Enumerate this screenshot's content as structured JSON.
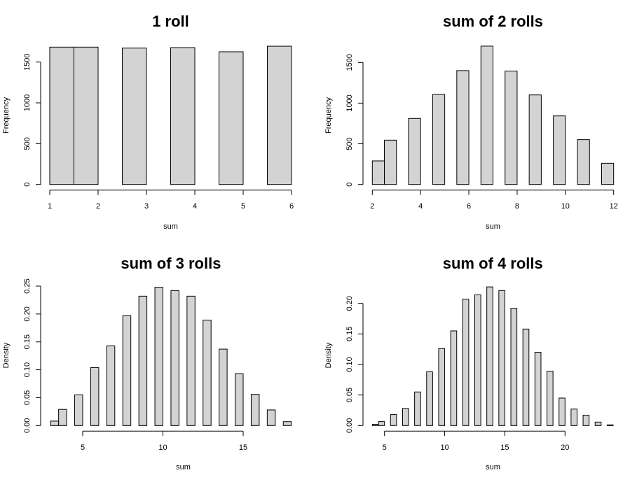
{
  "chart_data": [
    {
      "type": "bar",
      "title": "1 roll",
      "xlabel": "sum",
      "ylabel": "Frequency",
      "bin_start": 1,
      "bin_width": 0.5,
      "values": [
        1683,
        1683,
        0,
        1671,
        0,
        1677,
        0,
        1626,
        0,
        1694
      ],
      "xlim": [
        1,
        6
      ],
      "ylim": [
        0,
        1500
      ],
      "xticks": [
        1,
        2,
        3,
        4,
        5,
        6
      ],
      "yticks": [
        "0",
        "500",
        "1000",
        "1500"
      ],
      "fill": "#d3d3d3"
    },
    {
      "type": "bar",
      "title": "sum of 2 rolls",
      "xlabel": "sum",
      "ylabel": "Frequency",
      "bin_start": 2,
      "bin_width": 0.5,
      "values": [
        290,
        545,
        0,
        812,
        0,
        1107,
        0,
        1400,
        0,
        1701,
        0,
        1394,
        0,
        1101,
        0,
        843,
        0,
        551,
        0,
        261
      ],
      "xlim": [
        2,
        12
      ],
      "ylim": [
        0,
        1500
      ],
      "xticks": [
        2,
        4,
        6,
        8,
        10,
        12
      ],
      "yticks": [
        "0",
        "500",
        "1000",
        "1500"
      ],
      "fill": "#d3d3d3"
    },
    {
      "type": "bar",
      "title": "sum of 3 rolls",
      "xlabel": "sum",
      "ylabel": "Density",
      "bin_start": 3,
      "bin_width": 0.5,
      "values": [
        0.008,
        0.029,
        0,
        0.055,
        0,
        0.104,
        0,
        0.143,
        0,
        0.197,
        0,
        0.232,
        0,
        0.248,
        0,
        0.242,
        0,
        0.232,
        0,
        0.189,
        0,
        0.137,
        0,
        0.093,
        0,
        0.056,
        0,
        0.028,
        0,
        0.007
      ],
      "xlim": [
        5,
        15
      ],
      "ylim": [
        0,
        0.25
      ],
      "xticks": [
        5,
        10,
        15
      ],
      "yticks": [
        "0.00",
        "0.05",
        "0.10",
        "0.15",
        "0.20",
        "0.25"
      ],
      "fill": "#d3d3d3"
    },
    {
      "type": "bar",
      "title": "sum of 4 rolls",
      "xlabel": "sum",
      "ylabel": "Density",
      "bin_start": 4,
      "bin_width": 0.5,
      "values": [
        0.002,
        0.0065,
        0,
        0.018,
        0,
        0.028,
        0,
        0.055,
        0,
        0.088,
        0,
        0.126,
        0,
        0.155,
        0,
        0.207,
        0,
        0.214,
        0,
        0.227,
        0,
        0.221,
        0,
        0.192,
        0,
        0.158,
        0,
        0.12,
        0,
        0.089,
        0,
        0.045,
        0,
        0.027,
        0,
        0.017,
        0,
        0.0057,
        0,
        0.0011
      ],
      "xlim": [
        5,
        20
      ],
      "ylim": [
        0,
        0.2
      ],
      "xticks": [
        5,
        10,
        15,
        20
      ],
      "yticks": [
        "0.00",
        "0.05",
        "0.10",
        "0.15",
        "0.20"
      ],
      "fill": "#d3d3d3"
    }
  ]
}
